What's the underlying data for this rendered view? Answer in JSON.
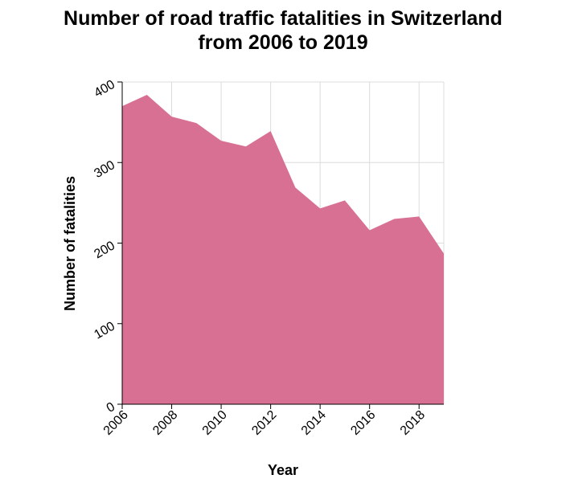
{
  "chart_data": {
    "type": "area",
    "title_lines": [
      "Number of road traffic fatalities in Switzerland",
      "from 2006 to 2019"
    ],
    "xlabel": "Year",
    "ylabel": "Number of fatalities",
    "x": [
      2006,
      2007,
      2008,
      2009,
      2010,
      2011,
      2012,
      2013,
      2014,
      2015,
      2016,
      2017,
      2018,
      2019
    ],
    "series": [
      {
        "values": [
          370,
          384,
          357,
          349,
          327,
          320,
          339,
          269,
          243,
          253,
          216,
          230,
          233,
          187
        ]
      }
    ],
    "xticks": [
      "2006",
      "2008",
      "2010",
      "2012",
      "2014",
      "2016",
      "2018"
    ],
    "yticks": [
      "0",
      "100",
      "200",
      "300",
      "400"
    ],
    "xlim": [
      2006,
      2019
    ],
    "ylim": [
      0,
      400
    ],
    "grid": true,
    "color": "#d87093"
  }
}
